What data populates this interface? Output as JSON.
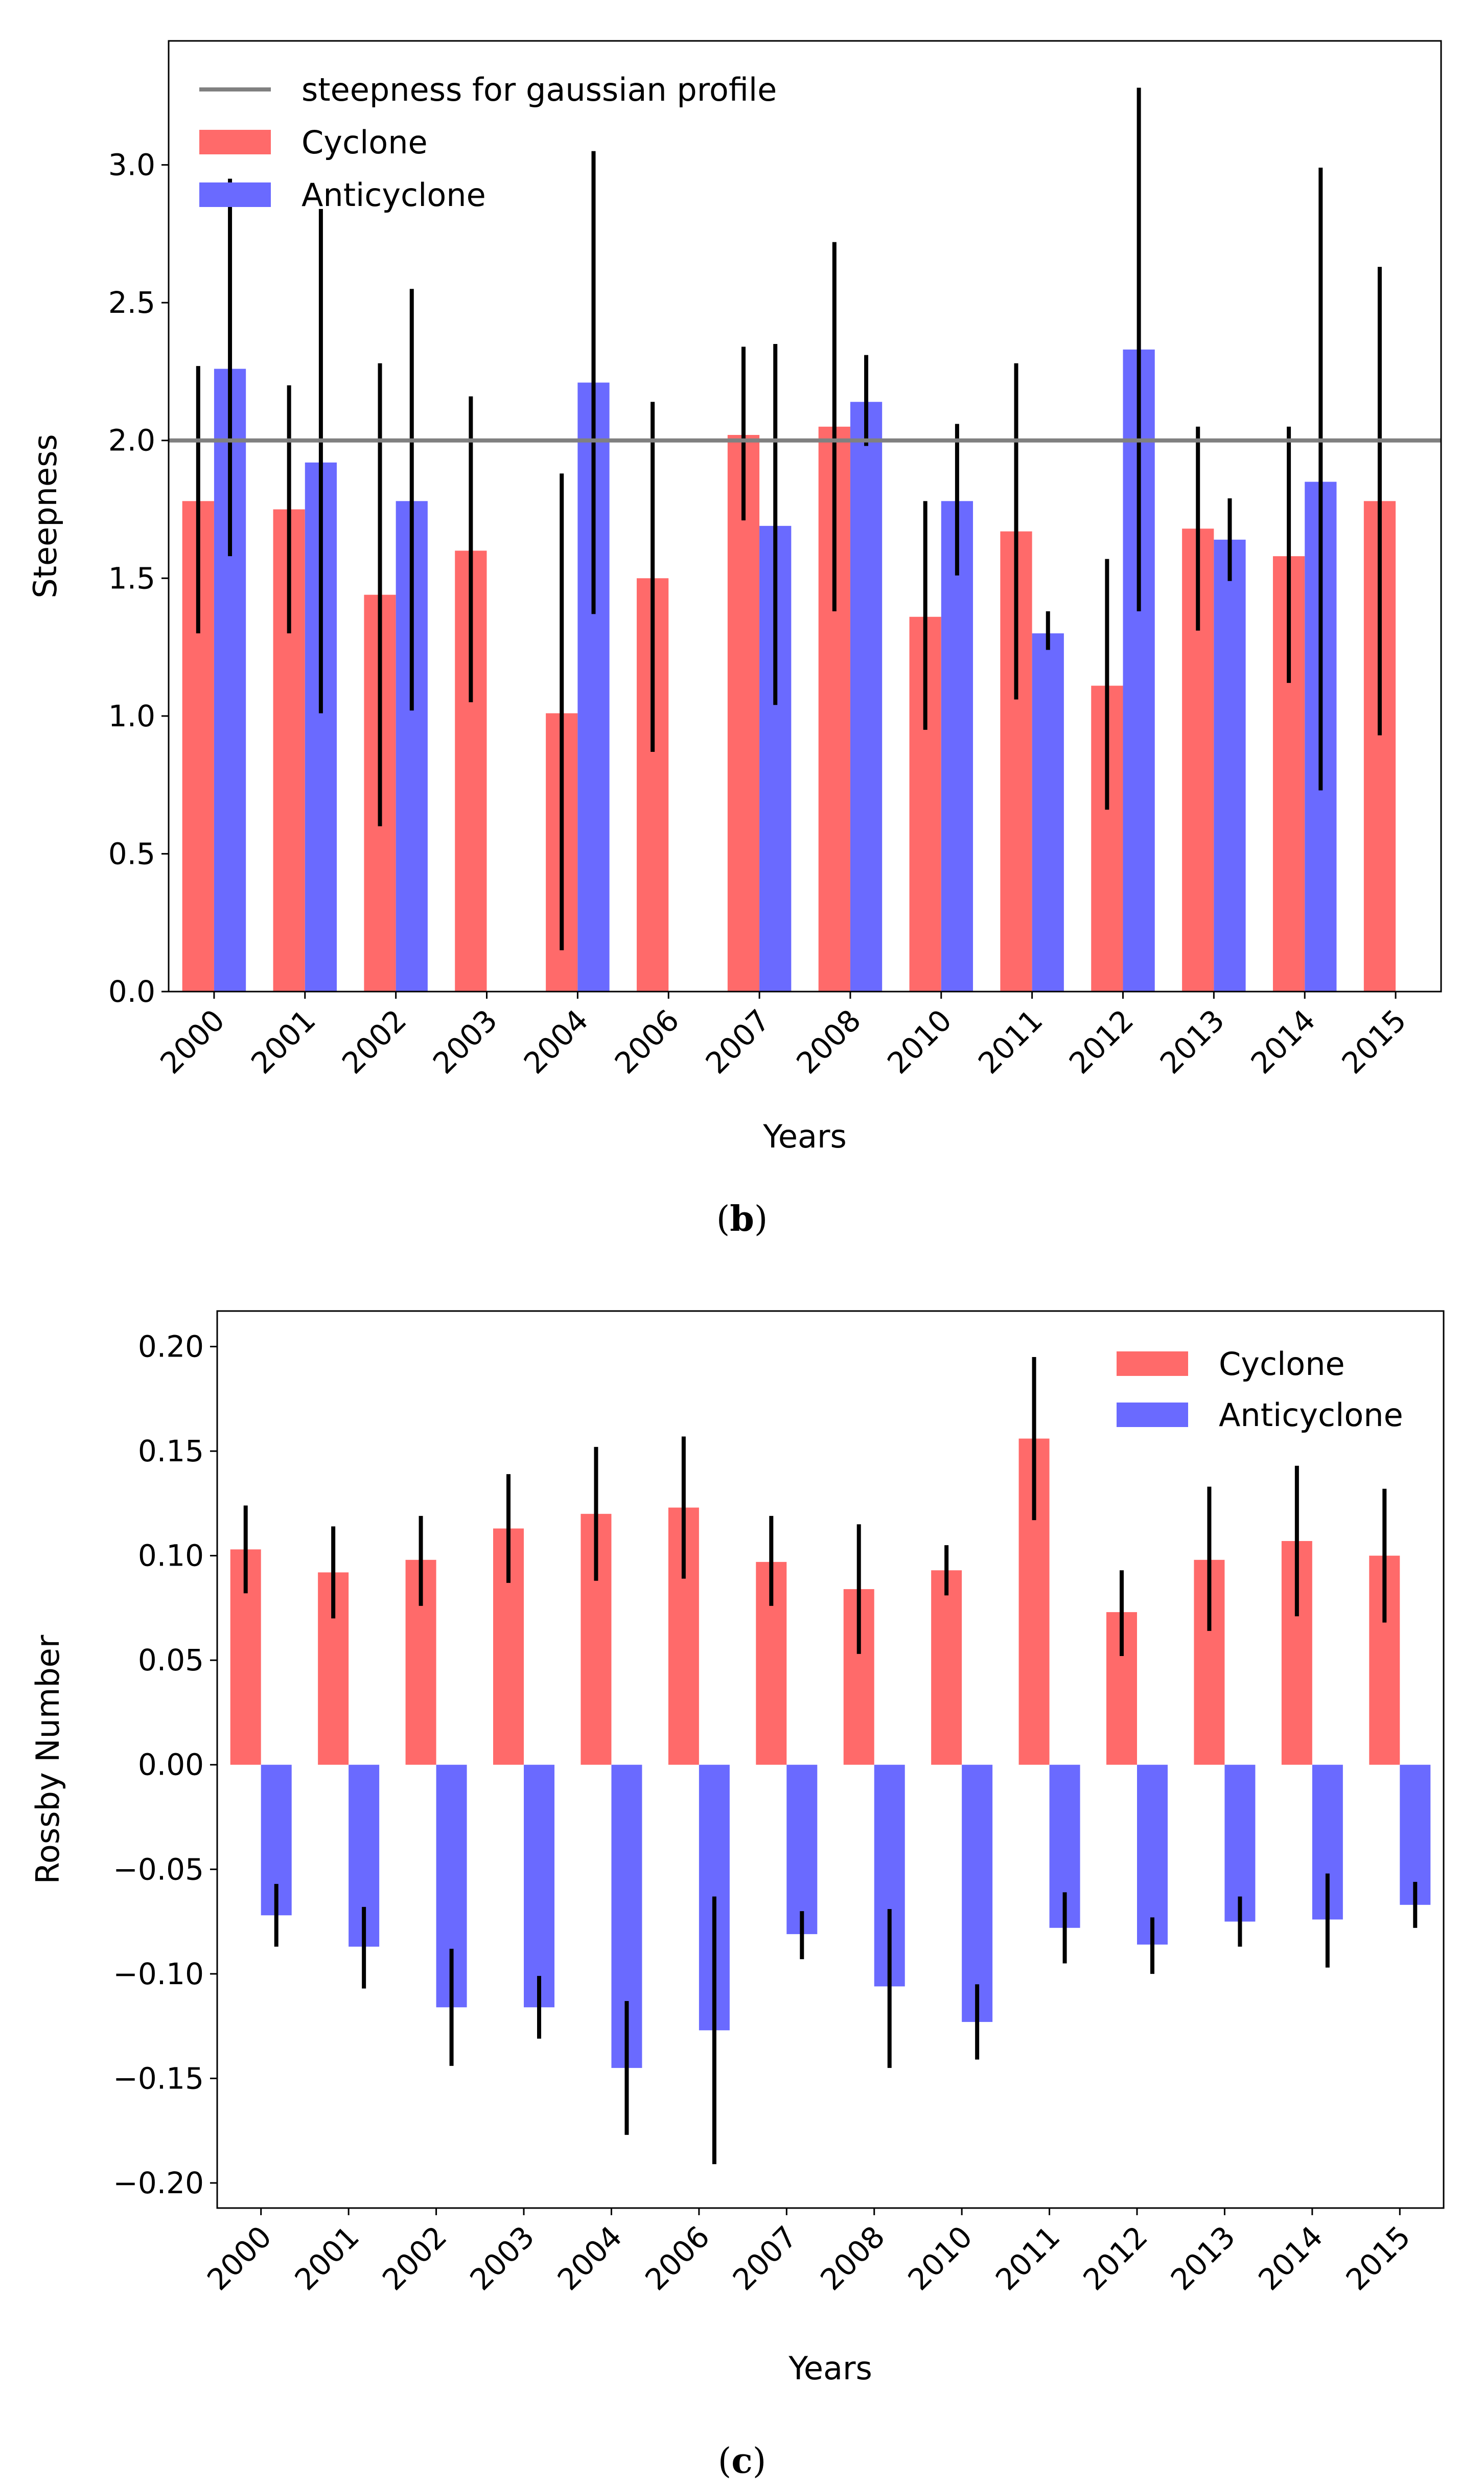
{
  "chart_data": [
    {
      "type": "bar",
      "panel": "b",
      "caption_label": "b",
      "title": "",
      "xlabel": "Years",
      "ylabel": "Steepness",
      "categories": [
        "2000",
        "2001",
        "2002",
        "2003",
        "2004",
        "2006",
        "2007",
        "2008",
        "2010",
        "2011",
        "2012",
        "2013",
        "2014",
        "2015"
      ],
      "ylim": [
        0,
        3.45
      ],
      "yticks": [
        0.0,
        0.5,
        1.0,
        1.5,
        2.0,
        2.5,
        3.0
      ],
      "ytick_labels": [
        "0.0",
        "0.5",
        "1.0",
        "1.5",
        "2.0",
        "2.5",
        "3.0"
      ],
      "reference_line": {
        "label": "steepness for gaussian profile",
        "value": 2.0,
        "color": "#808080"
      },
      "legend_position": "top-left",
      "series": [
        {
          "name": "Cyclone",
          "color": "#ff6a6a",
          "values": [
            1.78,
            1.75,
            1.44,
            1.6,
            1.01,
            1.5,
            2.02,
            2.05,
            1.36,
            1.67,
            1.11,
            1.68,
            1.58,
            1.78
          ],
          "err_low": [
            1.3,
            1.3,
            0.6,
            1.05,
            0.15,
            0.87,
            1.71,
            1.38,
            0.95,
            1.06,
            0.66,
            1.31,
            1.12,
            0.93
          ],
          "err_high": [
            2.27,
            2.2,
            2.28,
            2.16,
            1.88,
            2.14,
            2.34,
            2.72,
            1.78,
            2.28,
            1.57,
            2.05,
            2.05,
            2.63
          ]
        },
        {
          "name": "Anticyclone",
          "color": "#6a6aff",
          "values": [
            2.26,
            1.92,
            1.78,
            null,
            2.21,
            null,
            1.69,
            2.14,
            1.78,
            1.3,
            2.33,
            1.64,
            1.85,
            null
          ],
          "err_low": [
            1.58,
            1.01,
            1.02,
            null,
            1.37,
            null,
            1.04,
            1.98,
            1.51,
            1.24,
            1.38,
            1.49,
            0.73,
            null
          ],
          "err_high": [
            2.95,
            2.84,
            2.55,
            null,
            3.05,
            null,
            2.35,
            2.31,
            2.06,
            1.38,
            3.28,
            1.79,
            2.99,
            null
          ]
        }
      ]
    },
    {
      "type": "bar",
      "panel": "c",
      "caption_label": "c",
      "title": "",
      "xlabel": "Years",
      "ylabel": "Rossby Number",
      "categories": [
        "2000",
        "2001",
        "2002",
        "2003",
        "2004",
        "2006",
        "2007",
        "2008",
        "2010",
        "2011",
        "2012",
        "2013",
        "2014",
        "2015"
      ],
      "ylim": [
        -0.212,
        0.217
      ],
      "yticks": [
        -0.2,
        -0.15,
        -0.1,
        -0.05,
        0.0,
        0.05,
        0.1,
        0.15,
        0.2
      ],
      "ytick_labels": [
        "−0.20",
        "−0.15",
        "−0.10",
        "−0.05",
        "0.00",
        "0.05",
        "0.10",
        "0.15",
        "0.20"
      ],
      "legend_position": "top-right",
      "series": [
        {
          "name": "Cyclone",
          "color": "#ff6a6a",
          "values": [
            0.103,
            0.092,
            0.098,
            0.113,
            0.12,
            0.123,
            0.097,
            0.084,
            0.093,
            0.156,
            0.073,
            0.098,
            0.107,
            0.1
          ],
          "err_low": [
            0.082,
            0.07,
            0.076,
            0.087,
            0.088,
            0.089,
            0.076,
            0.053,
            0.081,
            0.117,
            0.052,
            0.064,
            0.071,
            0.068
          ],
          "err_high": [
            0.124,
            0.114,
            0.119,
            0.139,
            0.152,
            0.157,
            0.119,
            0.115,
            0.105,
            0.195,
            0.093,
            0.133,
            0.143,
            0.132
          ]
        },
        {
          "name": "Anticyclone",
          "color": "#6a6aff",
          "values": [
            -0.072,
            -0.087,
            -0.116,
            -0.116,
            -0.145,
            -0.127,
            -0.081,
            -0.106,
            -0.123,
            -0.078,
            -0.086,
            -0.075,
            -0.074,
            -0.067
          ],
          "err_low": [
            -0.087,
            -0.107,
            -0.144,
            -0.131,
            -0.177,
            -0.191,
            -0.093,
            -0.145,
            -0.141,
            -0.095,
            -0.1,
            -0.087,
            -0.097,
            -0.078
          ],
          "err_high": [
            -0.057,
            -0.068,
            -0.088,
            -0.101,
            -0.113,
            -0.063,
            -0.07,
            -0.069,
            -0.105,
            -0.061,
            -0.073,
            -0.063,
            -0.052,
            -0.056
          ]
        }
      ]
    }
  ]
}
